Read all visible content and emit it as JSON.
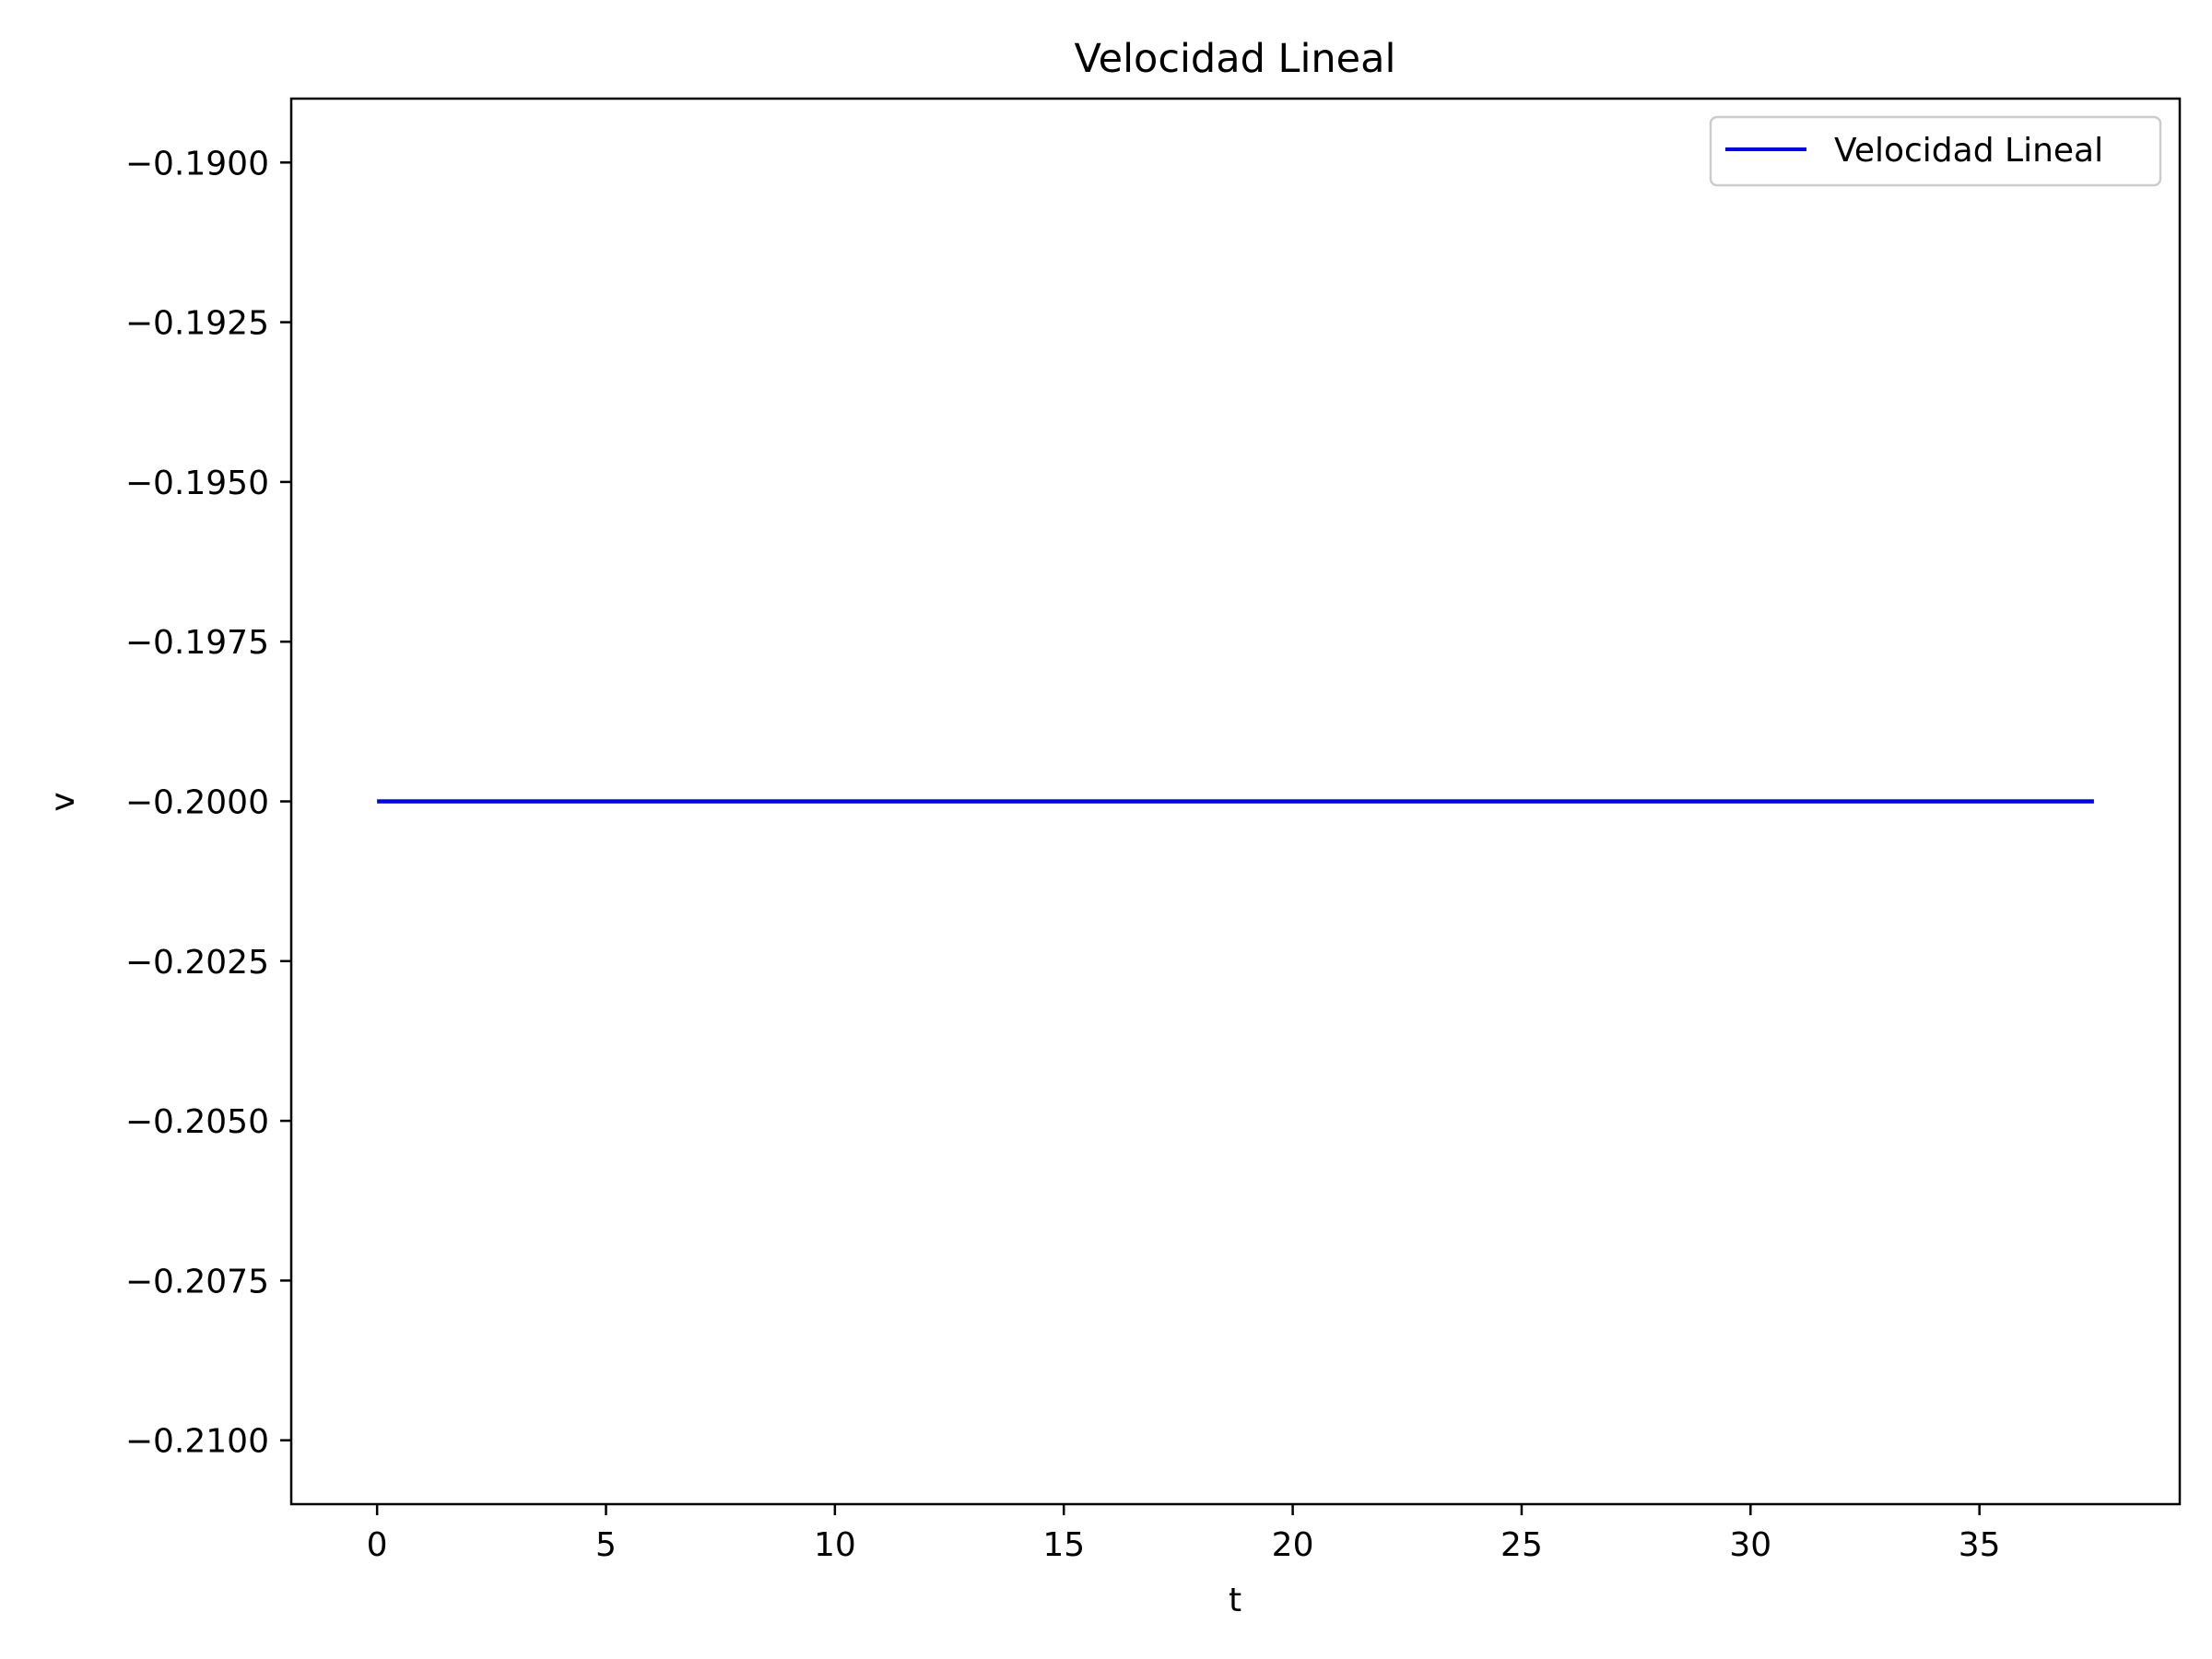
{
  "chart_data": {
    "type": "line",
    "title": "Velocidad Lineal",
    "xlabel": "t",
    "ylabel": "v",
    "xlim": [
      -1.875,
      39.375
    ],
    "ylim": [
      -0.211,
      -0.189
    ],
    "xticks": [
      0,
      5,
      10,
      15,
      20,
      25,
      30,
      35
    ],
    "xtick_labels": [
      "0",
      "5",
      "10",
      "15",
      "20",
      "25",
      "30",
      "35"
    ],
    "yticks": [
      -0.19,
      -0.1925,
      -0.195,
      -0.1975,
      -0.2,
      -0.2025,
      -0.205,
      -0.2075,
      -0.21
    ],
    "ytick_labels": [
      "−0.1900",
      "−0.1925",
      "−0.1950",
      "−0.1975",
      "−0.2000",
      "−0.2025",
      "−0.2050",
      "−0.2075",
      "−0.2100"
    ],
    "grid": false,
    "legend_position": "top-right",
    "series": [
      {
        "name": "Velocidad Lineal",
        "color": "#0000ff",
        "x": [
          0,
          37.5
        ],
        "y": [
          -0.2,
          -0.2
        ]
      }
    ]
  }
}
